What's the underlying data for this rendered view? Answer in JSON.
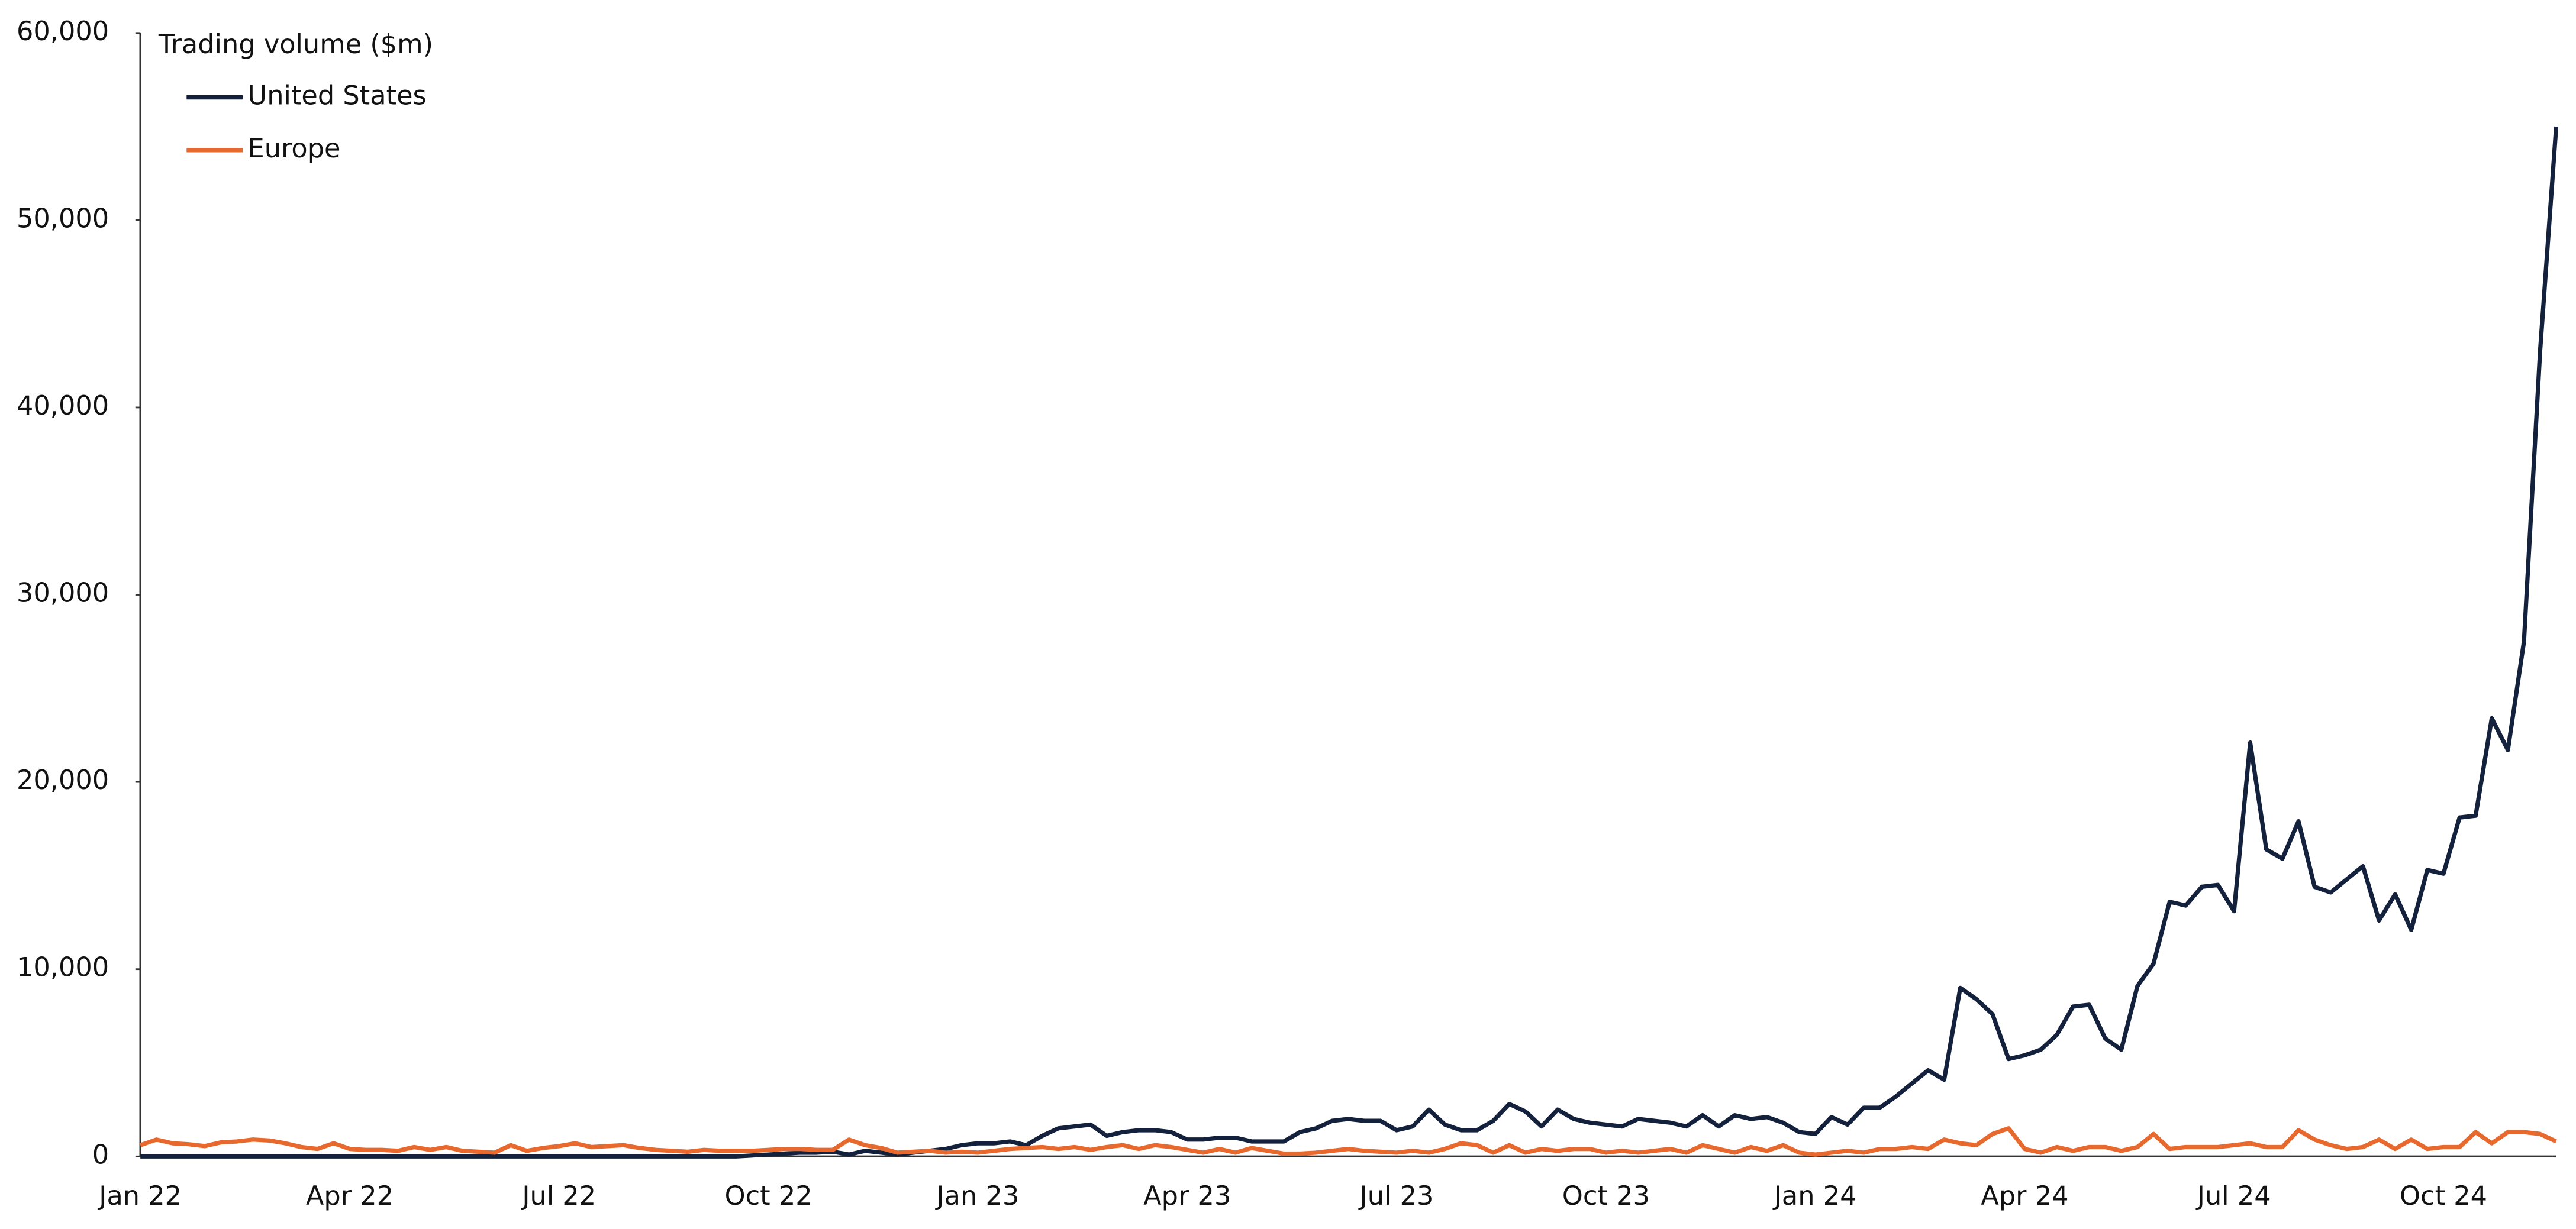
{
  "chart_data": {
    "type": "line",
    "y_label": "Trading volume ($m)",
    "categories": [
      "Jan 22",
      null,
      null,
      null,
      null,
      null,
      null,
      null,
      null,
      null,
      null,
      null,
      null,
      "Apr 22",
      null,
      null,
      null,
      null,
      null,
      null,
      null,
      null,
      null,
      null,
      null,
      null,
      "Jul 22",
      null,
      null,
      null,
      null,
      null,
      null,
      null,
      null,
      null,
      null,
      null,
      null,
      "Oct 22",
      null,
      null,
      null,
      null,
      null,
      null,
      null,
      null,
      null,
      null,
      null,
      null,
      "Jan 23",
      null,
      null,
      null,
      null,
      null,
      null,
      null,
      null,
      null,
      null,
      null,
      null,
      "Apr 23",
      null,
      null,
      null,
      null,
      null,
      null,
      null,
      null,
      null,
      null,
      null,
      null,
      "Jul 23",
      null,
      null,
      null,
      null,
      null,
      null,
      null,
      null,
      null,
      null,
      null,
      null,
      "Oct 23",
      null,
      null,
      null,
      null,
      null,
      null,
      null,
      null,
      null,
      null,
      null,
      null,
      "Jan 24",
      null,
      null,
      null,
      null,
      null,
      null,
      null,
      null,
      null,
      null,
      null,
      null,
      "Apr 24",
      null,
      null,
      null,
      null,
      null,
      null,
      null,
      null,
      null,
      null,
      null,
      null,
      "Jul 24",
      null,
      null,
      null,
      null,
      null,
      null,
      null,
      null,
      null,
      null,
      null,
      null,
      "Oct 24",
      null,
      null,
      null,
      null,
      null,
      null,
      null
    ],
    "series": [
      {
        "name": "United States",
        "color": "#14213d",
        "values": [
          0,
          0,
          0,
          0,
          0,
          0,
          0,
          0,
          0,
          0,
          0,
          0,
          0,
          0,
          0,
          0,
          0,
          0,
          0,
          0,
          0,
          0,
          0,
          0,
          0,
          0,
          0,
          0,
          0,
          0,
          0,
          0,
          0,
          0,
          0,
          0,
          0,
          0,
          50,
          100,
          150,
          200,
          200,
          250,
          100,
          300,
          200,
          100,
          200,
          300,
          400,
          600,
          700,
          700,
          800,
          600,
          1100,
          1500,
          1600,
          1700,
          1100,
          1300,
          1400,
          1400,
          1300,
          900,
          900,
          1000,
          1000,
          800,
          800,
          800,
          1300,
          1500,
          1900,
          2000,
          1900,
          1900,
          1400,
          1600,
          2500,
          1700,
          1400,
          1400,
          1900,
          2800,
          2400,
          1600,
          2500,
          2000,
          1800,
          1700,
          1600,
          2000,
          1900,
          1800,
          1600,
          2200,
          1600,
          2200,
          2000,
          2100,
          1800,
          1300,
          1200,
          2100,
          1700,
          2600,
          2600,
          3200,
          3900,
          4600,
          4100,
          9000,
          8400,
          7600,
          5200,
          5400,
          5700,
          6500,
          8000,
          8100,
          6300,
          5700,
          9100,
          10300,
          13600,
          13400,
          14400,
          14500,
          13100,
          22100,
          16400,
          15900,
          17900,
          14400,
          14100,
          14800,
          15500,
          12600,
          14000,
          12100,
          15300,
          15100,
          18100,
          18200,
          23400,
          21700,
          27500,
          43000,
          55000
        ]
      },
      {
        "name": "Europe",
        "color": "#e8692e",
        "values": [
          600,
          900,
          700,
          650,
          550,
          750,
          800,
          900,
          850,
          700,
          500,
          400,
          700,
          400,
          350,
          350,
          300,
          500,
          350,
          500,
          300,
          250,
          200,
          600,
          300,
          450,
          550,
          700,
          500,
          550,
          600,
          450,
          350,
          300,
          250,
          350,
          300,
          300,
          300,
          350,
          400,
          400,
          350,
          350,
          900,
          600,
          450,
          200,
          250,
          300,
          200,
          250,
          200,
          300,
          400,
          450,
          500,
          400,
          500,
          350,
          500,
          600,
          400,
          600,
          500,
          350,
          200,
          400,
          200,
          450,
          300,
          150,
          150,
          200,
          300,
          400,
          300,
          250,
          200,
          300,
          200,
          400,
          700,
          600,
          200,
          600,
          200,
          400,
          300,
          400,
          400,
          200,
          300,
          200,
          300,
          400,
          200,
          600,
          400,
          200,
          500,
          300,
          600,
          200,
          100,
          200,
          300,
          200,
          400,
          400,
          500,
          400,
          900,
          700,
          600,
          1200,
          1500,
          400,
          200,
          500,
          300,
          500,
          500,
          300,
          500,
          1200,
          400,
          500,
          500,
          500,
          600,
          700,
          500,
          500,
          1400,
          900,
          600,
          400,
          500,
          900,
          400,
          900,
          400,
          500,
          500,
          1300,
          700,
          1300,
          1300,
          1200,
          800
        ]
      }
    ],
    "ylim": [
      0,
      60000
    ],
    "yticks": [
      0,
      {
        "value": 10000,
        "label": "10,000"
      },
      {
        "value": 20000,
        "label": "20,000"
      },
      {
        "value": 30000,
        "label": "30,000"
      },
      {
        "value": 40000,
        "label": "40,000"
      },
      {
        "value": 50000,
        "label": "50,000"
      },
      {
        "value": 60000,
        "label": "60,000"
      }
    ],
    "grid": false,
    "legend": "top-left"
  }
}
